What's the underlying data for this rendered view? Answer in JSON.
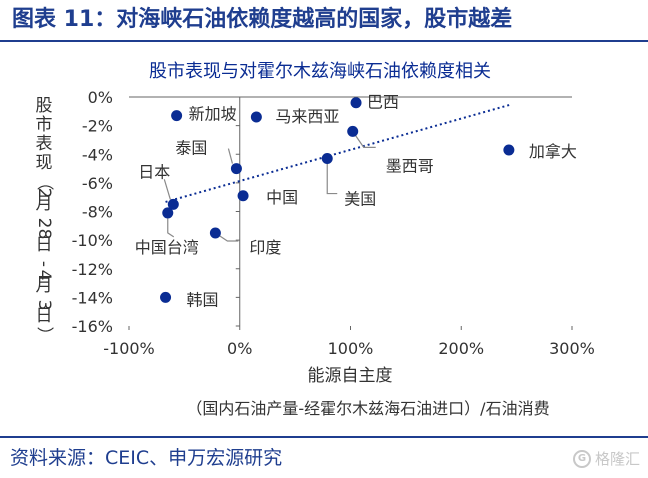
{
  "header": {
    "title": "图表 11：对海峡石油依赖度越高的国家，股市越差"
  },
  "footer": {
    "source": "资料来源：CEIC、申万宏源研究",
    "watermark": "格隆汇"
  },
  "chart_data": {
    "type": "scatter",
    "title": "股市表现与对霍尔木兹海峡石油依赖度相关",
    "xlabel": "能源自主度",
    "xlabel_note": "（国内石油产量-经霍尔木兹海石油进口）/石油消费",
    "ylabel": "股市表现（2月28日-4月3日）",
    "xlim": [
      -100,
      300
    ],
    "ylim": [
      -16,
      0
    ],
    "x_ticks": [
      "-100%",
      "0%",
      "100%",
      "200%",
      "300%"
    ],
    "y_ticks": [
      "0%",
      "-2%",
      "-4%",
      "-6%",
      "-8%",
      "-10%",
      "-12%",
      "-14%",
      "-16%"
    ],
    "trendline": true,
    "grid": false,
    "color": "#0a2c93",
    "points": [
      {
        "label": "新加坡",
        "x": -57,
        "y": -1.3
      },
      {
        "label": "马来西亚",
        "x": 15,
        "y": -1.4
      },
      {
        "label": "巴西",
        "x": 105,
        "y": -0.4
      },
      {
        "label": "墨西哥",
        "x": 102,
        "y": -2.4
      },
      {
        "label": "加拿大",
        "x": 243,
        "y": -3.7
      },
      {
        "label": "泰国",
        "x": -3,
        "y": -5.0
      },
      {
        "label": "美国",
        "x": 79,
        "y": -4.3
      },
      {
        "label": "中国",
        "x": 3,
        "y": -6.9
      },
      {
        "label": "日本",
        "x": -60,
        "y": -7.5
      },
      {
        "label": "中国台湾",
        "x": -65,
        "y": -8.1
      },
      {
        "label": "印度",
        "x": -22,
        "y": -9.5
      },
      {
        "label": "韩国",
        "x": -67,
        "y": -14.0
      }
    ]
  }
}
